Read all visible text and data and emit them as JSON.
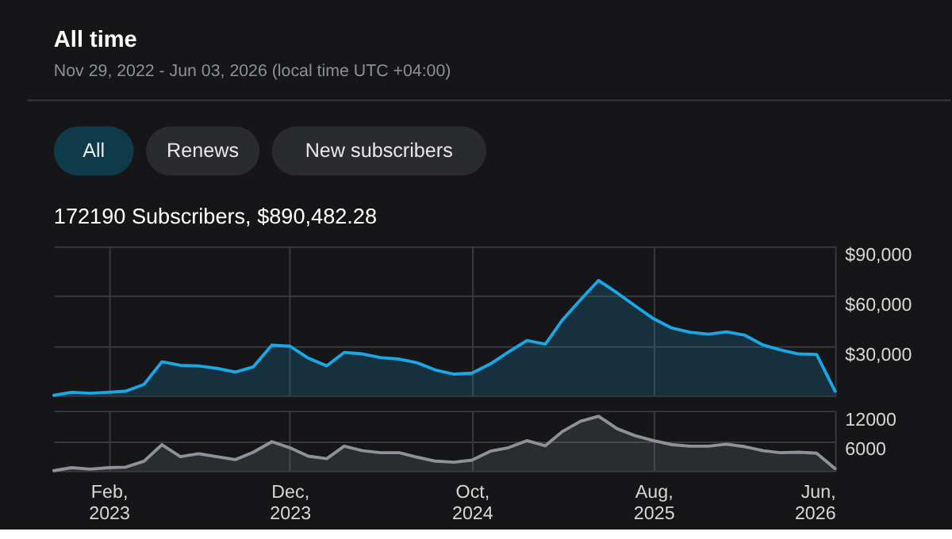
{
  "chart_data": [
    {
      "type": "area",
      "title": "All time",
      "subtitle": "Nov 29, 2022 - Jun 03, 2026 (local time UTC +04:00)",
      "annotations": [
        "All",
        "Renews",
        "New subscribers",
        "172190 Subscribers, $890,482.28"
      ],
      "x": [
        "2022-11",
        "2022-12",
        "2023-01",
        "2023-02",
        "2023-03",
        "2023-04",
        "2023-05",
        "2023-06",
        "2023-07",
        "2023-08",
        "2023-09",
        "2023-10",
        "2023-11",
        "2023-12",
        "2024-01",
        "2024-02",
        "2024-03",
        "2024-04",
        "2024-05",
        "2024-06",
        "2024-07",
        "2024-08",
        "2024-09",
        "2024-10",
        "2024-11",
        "2024-12",
        "2025-01",
        "2025-02",
        "2025-03",
        "2025-04",
        "2025-05",
        "2025-06",
        "2025-07",
        "2025-08",
        "2025-09",
        "2025-10",
        "2025-11",
        "2025-12",
        "2026-01",
        "2026-02",
        "2026-03",
        "2026-04",
        "2026-05",
        "2026-06"
      ],
      "series": [
        {
          "color": "#1aa7e6",
          "values": [
            0,
            1900,
            1250,
            1900,
            2500,
            6600,
            20300,
            18100,
            17800,
            16300,
            14100,
            17200,
            30300,
            29700,
            22500,
            17800,
            25900,
            25000,
            22800,
            21900,
            19700,
            15300,
            12800,
            13400,
            19000,
            26200,
            33100,
            30900,
            45300,
            57800,
            69400,
            61900,
            54100,
            46300,
            40600,
            38100,
            36900,
            38400,
            36300,
            30300,
            27500,
            25000,
            24700,
            2500
          ]
        }
      ],
      "xlim": [
        "2022-11",
        "2026-06"
      ],
      "xticks": [
        {
          "value": "2023-02",
          "label": null
        },
        {
          "value": "2023-12",
          "label": null
        },
        {
          "value": "2024-10",
          "label": null
        },
        {
          "value": "2025-08",
          "label": null
        },
        {
          "value": "2026-06",
          "label": null
        }
      ],
      "ylim": [
        0,
        90000
      ],
      "yticks": [
        {
          "value": 0,
          "label": null
        },
        {
          "value": 30000,
          "label": "$30,000"
        },
        {
          "value": 60000,
          "label": "$60,000"
        },
        {
          "value": 90000,
          "label": "$90,000"
        }
      ],
      "grid": true,
      "tick_labels": "y"
    },
    {
      "type": "area",
      "x": [
        "2022-11",
        "2022-12",
        "2023-01",
        "2023-02",
        "2023-03",
        "2023-04",
        "2023-05",
        "2023-06",
        "2023-07",
        "2023-08",
        "2023-09",
        "2023-10",
        "2023-11",
        "2023-12",
        "2024-01",
        "2024-02",
        "2024-03",
        "2024-04",
        "2024-05",
        "2024-06",
        "2024-07",
        "2024-08",
        "2024-09",
        "2024-10",
        "2024-11",
        "2024-12",
        "2025-01",
        "2025-02",
        "2025-03",
        "2025-04",
        "2025-05",
        "2025-06",
        "2025-07",
        "2025-08",
        "2025-09",
        "2025-10",
        "2025-11",
        "2025-12",
        "2026-01",
        "2026-02",
        "2026-03",
        "2026-04",
        "2026-05",
        "2026-06"
      ],
      "series": [
        {
          "color": "#8d929a",
          "values": [
            0,
            600,
            300,
            600,
            700,
            1900,
            5200,
            2800,
            3400,
            2800,
            2200,
            3700,
            5800,
            4600,
            2900,
            2400,
            4900,
            4000,
            3600,
            3600,
            2700,
            1900,
            1700,
            2100,
            3900,
            4600,
            6000,
            5000,
            7800,
            9900,
            10900,
            8400,
            7000,
            6000,
            5200,
            4900,
            4900,
            5300,
            4800,
            4000,
            3600,
            3700,
            3500,
            400
          ]
        }
      ],
      "xlim": [
        "2022-11",
        "2026-06"
      ],
      "xticks": [
        {
          "value": "2023-02",
          "label": "Feb, 2023"
        },
        {
          "value": "2023-12",
          "label": "Dec, 2023"
        },
        {
          "value": "2024-10",
          "label": "Oct, 2024"
        },
        {
          "value": "2025-08",
          "label": "Aug, 2025"
        },
        {
          "value": "2026-06",
          "label": "Jun, 2026"
        }
      ],
      "ylim": [
        0,
        12000
      ],
      "yticks": [
        {
          "value": 0,
          "label": null
        },
        6000,
        12000
      ],
      "grid": true
    }
  ]
}
